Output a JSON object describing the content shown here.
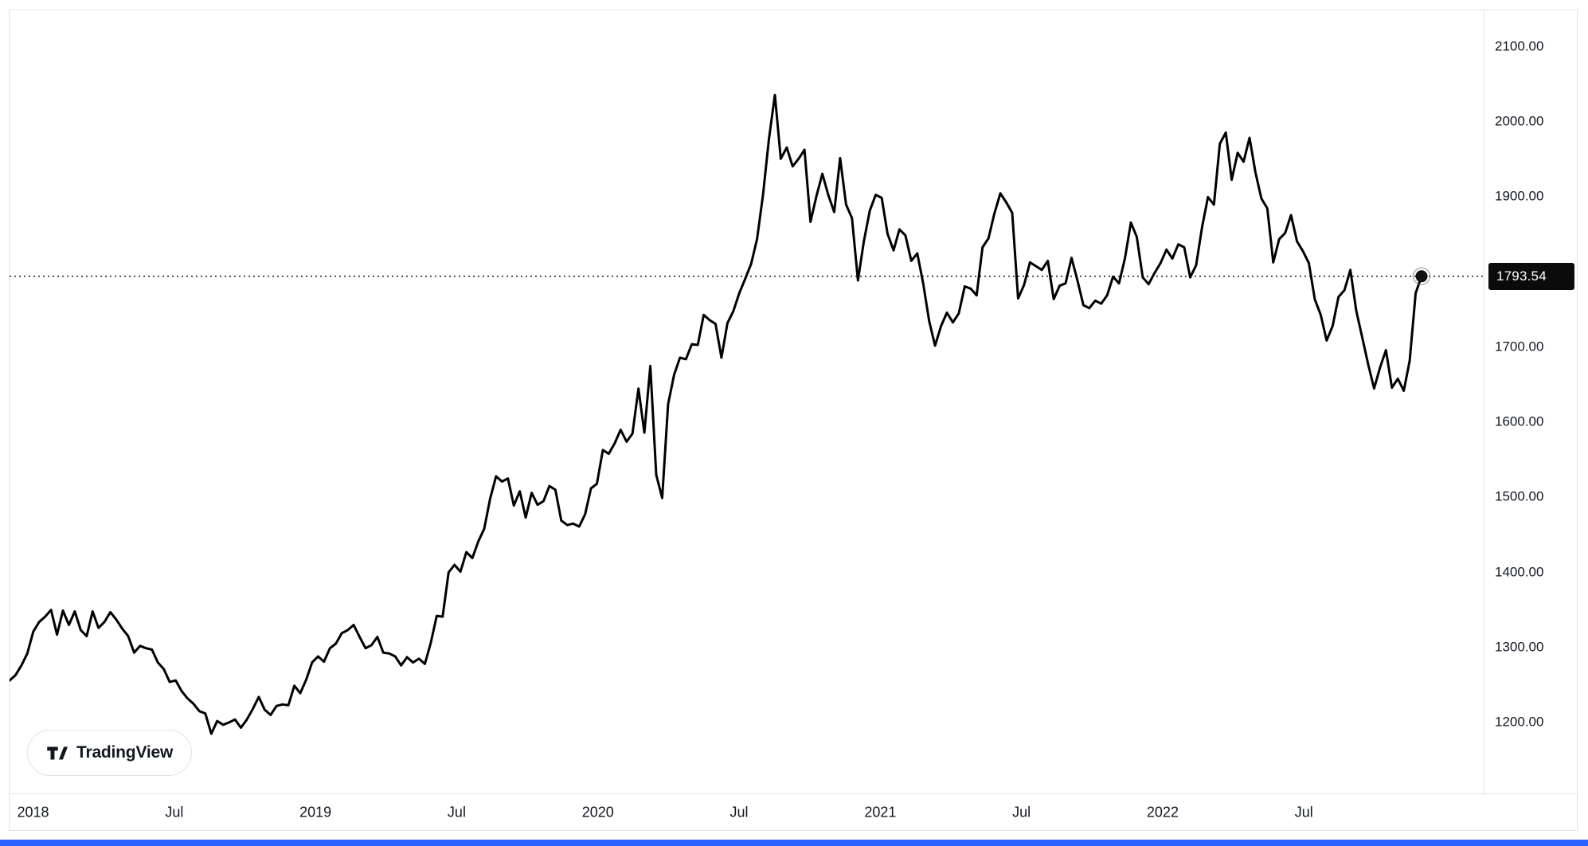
{
  "logo": {
    "text": "TradingView"
  },
  "colors": {
    "line": "#000000",
    "current_price_line": "#000000",
    "badge_bg": "#0b0b0b",
    "badge_text": "#ffffff",
    "axis_text": "#131722",
    "border": "#e0e3eb",
    "accent_bar": "#2962ff"
  },
  "chart_data": {
    "type": "line",
    "title": "",
    "xlabel": "",
    "ylabel": "",
    "grid": false,
    "legend": false,
    "period_start": "Dec 2017",
    "period_end": "Nov 2022",
    "last_price": 1793.54,
    "last_price_label": "1793.54",
    "ylim": [
      1150,
      2148
    ],
    "y_ticks": [
      {
        "label": "2100.00",
        "value": 2100
      },
      {
        "label": "2000.00",
        "value": 2000
      },
      {
        "label": "1900.00",
        "value": 1900
      },
      {
        "label": "1700.00",
        "value": 1700
      },
      {
        "label": "1600.00",
        "value": 1600
      },
      {
        "label": "1500.00",
        "value": 1500
      },
      {
        "label": "1400.00",
        "value": 1400
      },
      {
        "label": "1300.00",
        "value": 1300
      },
      {
        "label": "1200.00",
        "value": 1200
      }
    ],
    "x_ticks": [
      {
        "label": "2018",
        "m": 1
      },
      {
        "label": "Jul",
        "m": 7
      },
      {
        "label": "2019",
        "m": 13
      },
      {
        "label": "Jul",
        "m": 19
      },
      {
        "label": "2020",
        "m": 25
      },
      {
        "label": "Jul",
        "m": 31
      },
      {
        "label": "2021",
        "m": 37
      },
      {
        "label": "Jul",
        "m": 43
      },
      {
        "label": "2022",
        "m": 49
      },
      {
        "label": "Jul",
        "m": 55
      }
    ],
    "months_span": 60,
    "values": [
      1255,
      1262,
      1275,
      1291,
      1320,
      1333,
      1340,
      1349,
      1316,
      1348,
      1329,
      1347,
      1322,
      1314,
      1347,
      1325,
      1333,
      1346,
      1336,
      1324,
      1314,
      1292,
      1301,
      1298,
      1296,
      1279,
      1270,
      1253,
      1255,
      1241,
      1231,
      1224,
      1214,
      1211,
      1184,
      1201,
      1196,
      1199,
      1203,
      1192,
      1203,
      1217,
      1233,
      1216,
      1209,
      1221,
      1223,
      1222,
      1248,
      1238,
      1256,
      1279,
      1287,
      1280,
      1298,
      1304,
      1318,
      1322,
      1329,
      1313,
      1298,
      1302,
      1313,
      1292,
      1291,
      1287,
      1275,
      1286,
      1279,
      1284,
      1277,
      1305,
      1341,
      1340,
      1399,
      1409,
      1400,
      1426,
      1418,
      1440,
      1457,
      1497,
      1527,
      1520,
      1524,
      1488,
      1507,
      1472,
      1505,
      1489,
      1494,
      1514,
      1509,
      1468,
      1462,
      1464,
      1460,
      1476,
      1511,
      1517,
      1562,
      1557,
      1571,
      1589,
      1573,
      1584,
      1644,
      1585,
      1674,
      1529,
      1498,
      1623,
      1662,
      1685,
      1683,
      1703,
      1702,
      1742,
      1735,
      1730,
      1685,
      1731,
      1747,
      1771,
      1790,
      1810,
      1843,
      1902,
      1976,
      2035,
      1950,
      1965,
      1940,
      1950,
      1962,
      1866,
      1900,
      1930,
      1902,
      1879,
      1951,
      1889,
      1871,
      1788,
      1840,
      1881,
      1902,
      1898,
      1850,
      1828,
      1856,
      1848,
      1814,
      1824,
      1784,
      1734,
      1701,
      1727,
      1745,
      1732,
      1744,
      1780,
      1777,
      1768,
      1832,
      1844,
      1877,
      1904,
      1892,
      1878,
      1764,
      1782,
      1812,
      1807,
      1802,
      1814,
      1763,
      1781,
      1784,
      1818,
      1788,
      1755,
      1751,
      1761,
      1757,
      1768,
      1793,
      1784,
      1817,
      1865,
      1846,
      1792,
      1783,
      1798,
      1811,
      1829,
      1817,
      1836,
      1832,
      1792,
      1808,
      1859,
      1899,
      1889,
      1970,
      1985,
      1922,
      1958,
      1946,
      1978,
      1932,
      1897,
      1884,
      1812,
      1843,
      1851,
      1875,
      1840,
      1827,
      1811,
      1763,
      1742,
      1708,
      1727,
      1766,
      1775,
      1802,
      1747,
      1712,
      1676,
      1644,
      1672,
      1695,
      1645,
      1657,
      1641,
      1681,
      1771,
      1793.54
    ]
  }
}
